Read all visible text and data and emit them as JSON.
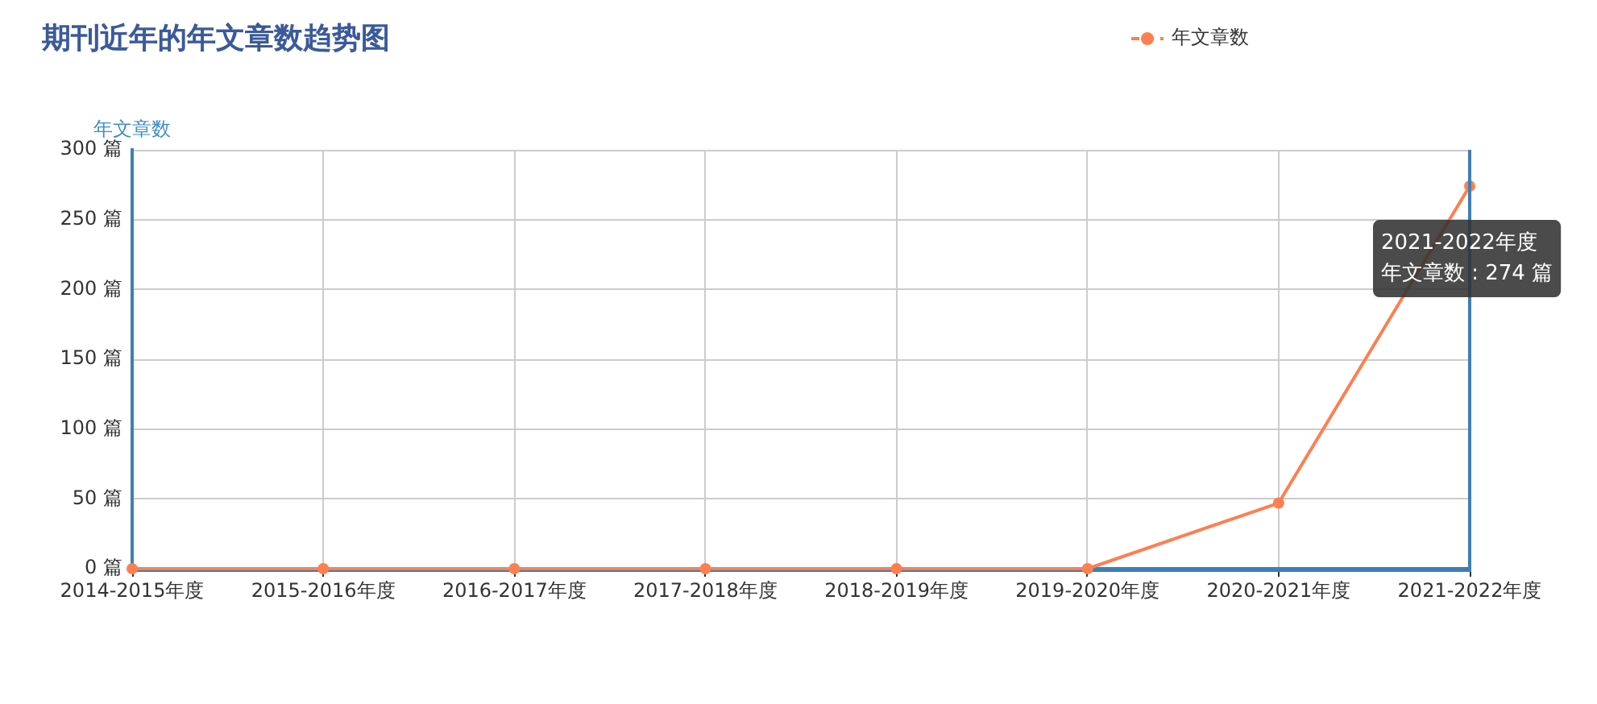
{
  "chart_data": {
    "type": "line",
    "title": "期刊近年的年文章数趋势图",
    "ylabel": "年文章数",
    "categories": [
      "2014-2015年度",
      "2015-2016年度",
      "2016-2017年度",
      "2017-2018年度",
      "2018-2019年度",
      "2019-2020年度",
      "2020-2021年度",
      "2021-2022年度"
    ],
    "series": [
      {
        "name": "年文章数",
        "color": "#ff7f50",
        "values": [
          0,
          0,
          0,
          0,
          0,
          0,
          47,
          274
        ]
      }
    ],
    "ylim": [
      0,
      300
    ],
    "yticks": [
      {
        "value": 0,
        "label": "0 篇"
      },
      {
        "value": 50,
        "label": "50 篇"
      },
      {
        "value": 100,
        "label": "100 篇"
      },
      {
        "value": 150,
        "label": "150 篇"
      },
      {
        "value": 200,
        "label": "200 篇"
      },
      {
        "value": 250,
        "label": "250 篇"
      },
      {
        "value": 300,
        "label": "300 篇"
      }
    ],
    "grid": true,
    "legend": "top right",
    "marker": "circle",
    "line_style": "solid",
    "annotations": [
      {
        "text": "2021-2022年度",
        "x": "2021-2022年度",
        "y": 274
      },
      "年文章数 : 274 篇"
    ]
  }
}
